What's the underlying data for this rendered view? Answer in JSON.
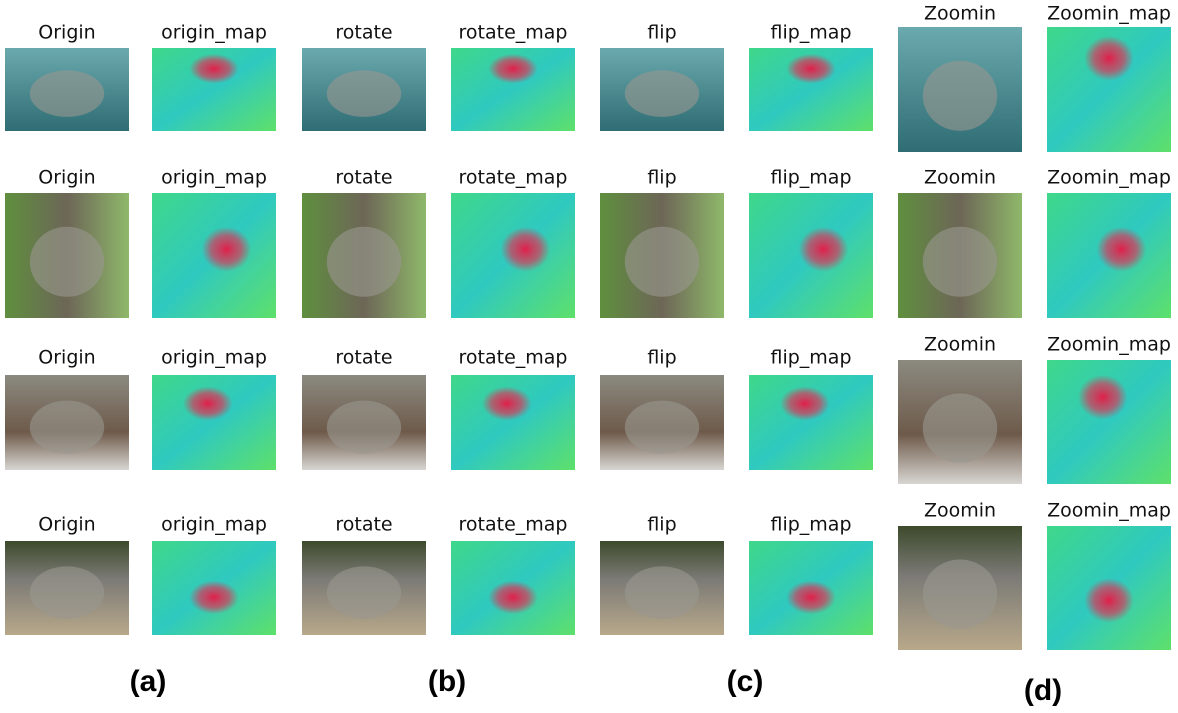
{
  "rows": [
    {
      "panels": [
        "Origin",
        "origin_map",
        "rotate",
        "rotate_map",
        "flip",
        "flip_map",
        "Zoomin",
        "Zoomin_map"
      ]
    },
    {
      "panels": [
        "Origin",
        "origin_map",
        "rotate",
        "rotate_map",
        "flip",
        "flip_map",
        "Zoomin",
        "Zoomin_map"
      ]
    },
    {
      "panels": [
        "Origin",
        "origin_map",
        "rotate",
        "rotate_map",
        "flip",
        "flip_map",
        "Zoomin",
        "Zoomin_map"
      ]
    },
    {
      "panels": [
        "Origin",
        "origin_map",
        "rotate",
        "rotate_map",
        "flip",
        "flip_map",
        "Zoomin",
        "Zoomin_map"
      ]
    }
  ],
  "labels": [
    "(a)",
    "(b)",
    "(c)",
    "(d)"
  ]
}
